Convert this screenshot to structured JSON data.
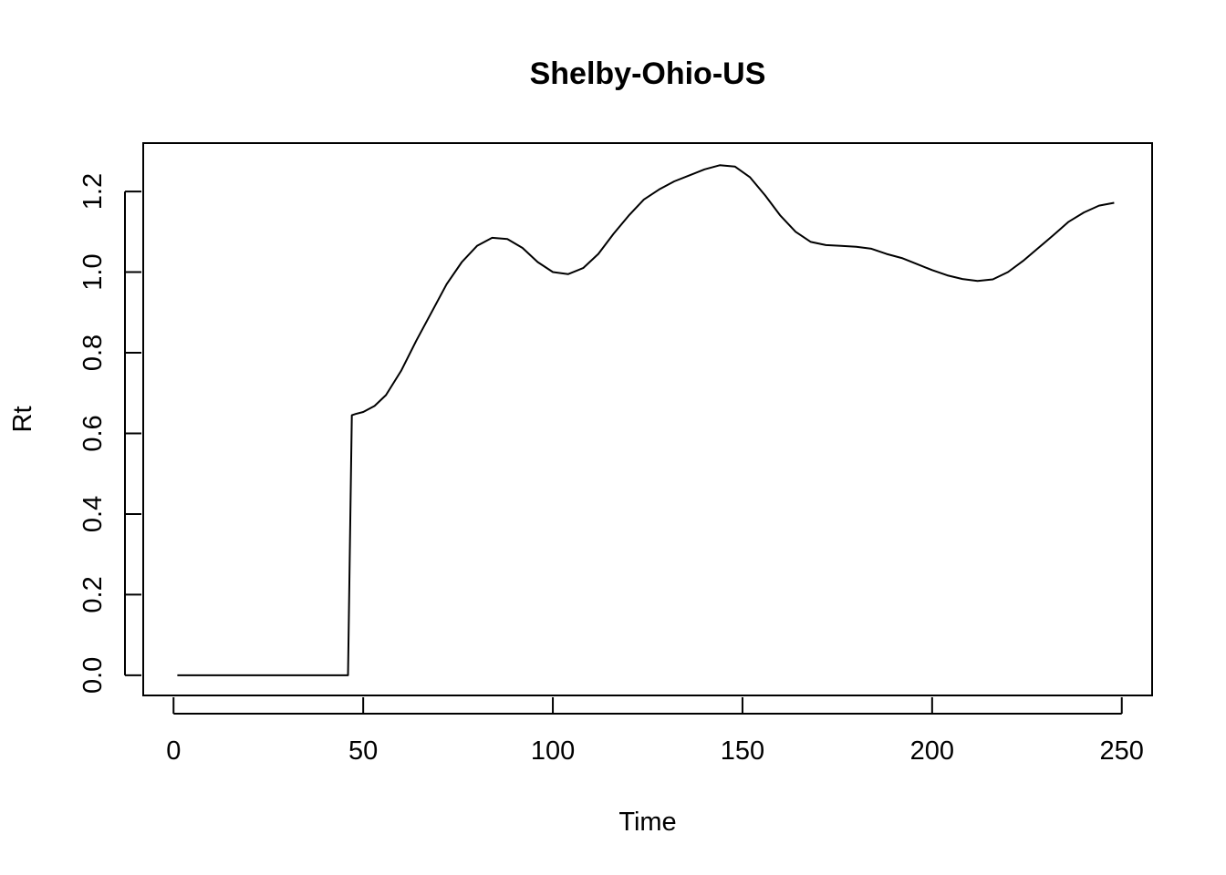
{
  "chart_data": {
    "type": "line",
    "title": "Shelby-Ohio-US",
    "xlabel": "Time",
    "ylabel": "Rt",
    "xlim": [
      -8,
      258
    ],
    "ylim": [
      -0.05,
      1.32
    ],
    "xticks": [
      0,
      50,
      100,
      150,
      200,
      250
    ],
    "yticks": [
      0.0,
      0.2,
      0.4,
      0.6,
      0.8,
      1.0,
      1.2
    ],
    "xtick_labels": [
      "0",
      "50",
      "100",
      "150",
      "200",
      "250"
    ],
    "ytick_labels": [
      "0.0",
      "0.2",
      "0.4",
      "0.6",
      "0.8",
      "1.0",
      "1.2"
    ],
    "grid": false,
    "series": [
      {
        "x": [
          1,
          10,
          20,
          30,
          40,
          46,
          47,
          48,
          50,
          53,
          56,
          60,
          64,
          68,
          72,
          76,
          80,
          84,
          88,
          92,
          96,
          100,
          104,
          108,
          112,
          116,
          120,
          124,
          128,
          132,
          136,
          140,
          144,
          148,
          152,
          156,
          160,
          164,
          168,
          172,
          176,
          180,
          184,
          188,
          192,
          196,
          200,
          204,
          208,
          212,
          216,
          220,
          224,
          228,
          232,
          236,
          240,
          244,
          248
        ],
        "y": [
          0,
          0,
          0,
          0,
          0,
          0,
          0.645,
          0.648,
          0.653,
          0.668,
          0.695,
          0.755,
          0.83,
          0.9,
          0.97,
          1.025,
          1.065,
          1.085,
          1.082,
          1.06,
          1.025,
          1.0,
          0.995,
          1.01,
          1.045,
          1.095,
          1.14,
          1.18,
          1.205,
          1.225,
          1.24,
          1.255,
          1.265,
          1.262,
          1.235,
          1.19,
          1.14,
          1.1,
          1.075,
          1.067,
          1.065,
          1.063,
          1.058,
          1.045,
          1.035,
          1.02,
          1.005,
          0.992,
          0.983,
          0.978,
          0.982,
          1.0,
          1.028,
          1.06,
          1.092,
          1.125,
          1.148,
          1.165,
          1.172
        ]
      }
    ]
  }
}
